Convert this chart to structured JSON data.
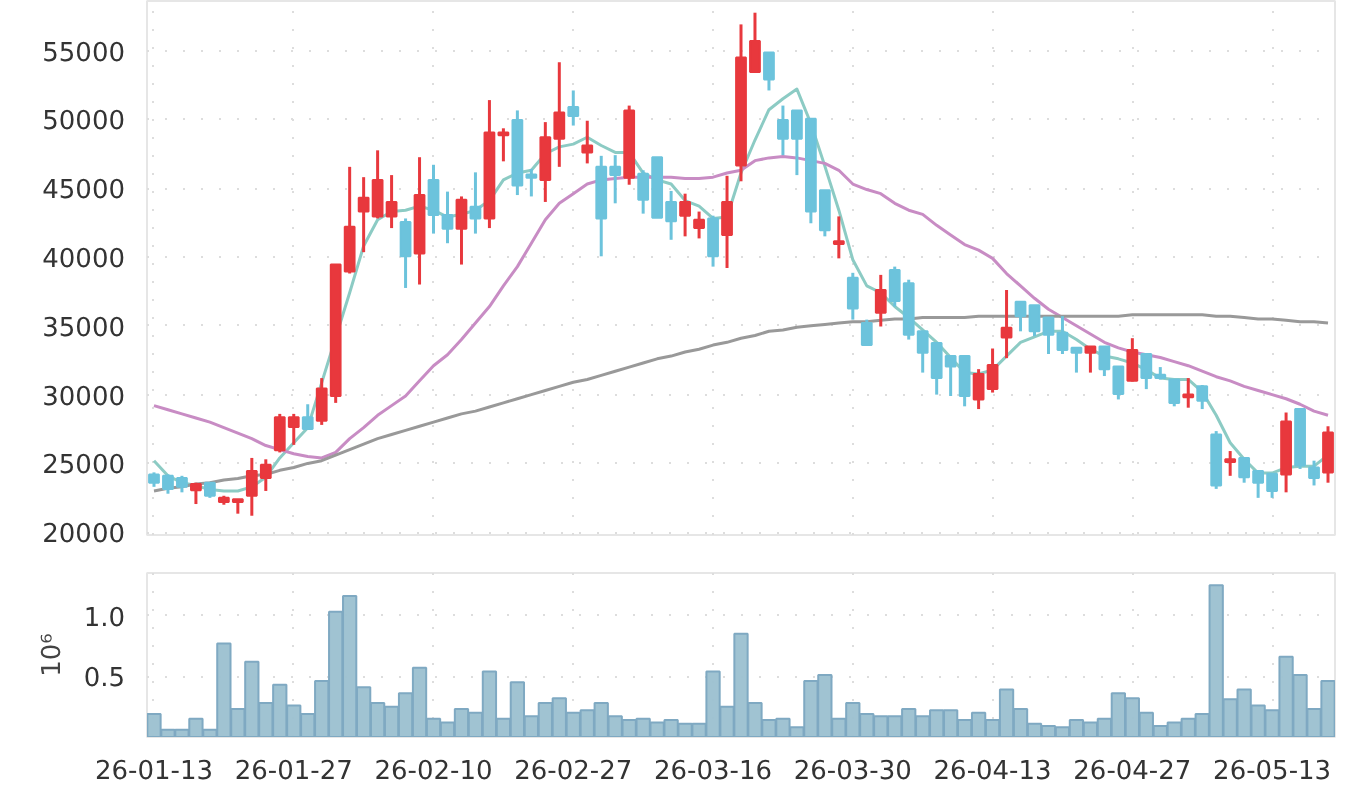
{
  "chart_data": [
    {
      "type": "candlestick",
      "categories": [
        null,
        null,
        null,
        null,
        null,
        null,
        null,
        null,
        null,
        null,
        null,
        null,
        null,
        null,
        null,
        null,
        null,
        null,
        null,
        null,
        null,
        null,
        null,
        null,
        null,
        null,
        null,
        null,
        null,
        null,
        null,
        null,
        null,
        null,
        null,
        null,
        null,
        null,
        null,
        null,
        null,
        null,
        null,
        null,
        null,
        null,
        null,
        null,
        null,
        null,
        null,
        null,
        null,
        null,
        null,
        null,
        null,
        null,
        null,
        null,
        null,
        null,
        null,
        null,
        null,
        null,
        null,
        null,
        null,
        null,
        null,
        null,
        null,
        null,
        null,
        null,
        null,
        null,
        null,
        null,
        null,
        null,
        null,
        null,
        null
      ],
      "ohlc": [
        [
          24200,
          24350,
          23300,
          23600
        ],
        [
          24100,
          24200,
          22800,
          23150
        ],
        [
          23950,
          24100,
          22900,
          23300
        ],
        [
          23050,
          23600,
          22050,
          23500
        ],
        [
          23600,
          23600,
          22500,
          22650
        ],
        [
          22200,
          22650,
          22000,
          22500
        ],
        [
          22200,
          22400,
          21350,
          22400
        ],
        [
          22650,
          25400,
          21200,
          24450
        ],
        [
          23950,
          25300,
          23000,
          24900
        ],
        [
          25950,
          28600,
          25800,
          28350
        ],
        [
          27650,
          28600,
          26350,
          28350
        ],
        [
          28350,
          29300,
          27450,
          27500
        ],
        [
          28100,
          31200,
          27800,
          30450
        ],
        [
          29900,
          39450,
          29400,
          39450
        ],
        [
          38950,
          46550,
          38800,
          42200
        ],
        [
          43300,
          45800,
          40350,
          44300
        ],
        [
          42950,
          47750,
          42800,
          45600
        ],
        [
          42950,
          45950,
          42100,
          44000
        ],
        [
          42550,
          42800,
          37750,
          40050
        ],
        [
          40250,
          47250,
          38000,
          44500
        ],
        [
          45600,
          46700,
          41700,
          43050
        ],
        [
          43050,
          44750,
          41000,
          42050
        ],
        [
          42050,
          44400,
          39450,
          44150
        ],
        [
          43650,
          46150,
          41700,
          42800
        ],
        [
          42800,
          51400,
          42100,
          49050
        ],
        [
          48850,
          49350,
          46950,
          49050
        ],
        [
          49950,
          50650,
          44500,
          45200
        ],
        [
          46000,
          46400,
          44400,
          45750
        ],
        [
          45600,
          49800,
          44000,
          48700
        ],
        [
          48600,
          54150,
          46550,
          50500
        ],
        [
          50900,
          52100,
          49550,
          50250
        ],
        [
          47600,
          49900,
          46800,
          48100
        ],
        [
          46550,
          47350,
          40050,
          42800
        ],
        [
          46550,
          47400,
          43900,
          45950
        ],
        [
          45750,
          51000,
          45250,
          50650
        ],
        [
          46050,
          46300,
          43150,
          44150
        ],
        [
          47250,
          47250,
          42850,
          42850
        ],
        [
          44000,
          44800,
          41250,
          42600
        ],
        [
          43000,
          44600,
          41500,
          44000
        ],
        [
          42100,
          43300,
          41350,
          42700
        ],
        [
          42800,
          43000,
          39300,
          40050
        ],
        [
          41600,
          45900,
          39200,
          44000
        ],
        [
          46650,
          56900,
          45500,
          54500
        ],
        [
          53450,
          57750,
          53450,
          55700
        ],
        [
          54850,
          54850,
          52100,
          52900
        ],
        [
          49950,
          51000,
          47400,
          48600
        ],
        [
          50650,
          50650,
          45950,
          48600
        ],
        [
          50050,
          50050,
          42450,
          43300
        ],
        [
          44850,
          44850,
          41500,
          41950
        ],
        [
          40950,
          42950,
          39900,
          41150
        ],
        [
          38500,
          38850,
          35450,
          36250
        ],
        [
          35200,
          35450,
          33600,
          33600
        ],
        [
          35950,
          38700,
          34950,
          37600
        ],
        [
          39050,
          39300,
          36400,
          36800
        ],
        [
          38100,
          38350,
          34000,
          34350
        ],
        [
          34600,
          34600,
          31600,
          33050
        ],
        [
          33750,
          33750,
          30000,
          31200
        ],
        [
          32800,
          32800,
          29900,
          32050
        ],
        [
          32800,
          32800,
          29150,
          29900
        ],
        [
          29650,
          31850,
          28950,
          31500
        ],
        [
          30400,
          33350,
          30150,
          32150
        ],
        [
          34150,
          37600,
          32650,
          34850
        ],
        [
          36750,
          36750,
          34600,
          35700
        ],
        [
          36500,
          36500,
          34250,
          34600
        ],
        [
          35600,
          35600,
          32950,
          34350
        ],
        [
          34500,
          35700,
          32950,
          33250
        ],
        [
          33400,
          33400,
          31600,
          33050
        ],
        [
          33050,
          33500,
          31600,
          33500
        ],
        [
          33500,
          33500,
          31350,
          31850
        ],
        [
          32050,
          32050,
          29650,
          30050
        ],
        [
          31000,
          34100,
          30950,
          33250
        ],
        [
          32950,
          32950,
          30400,
          31200
        ],
        [
          31450,
          32000,
          31100,
          31200
        ],
        [
          31100,
          31100,
          29150,
          29400
        ],
        [
          29800,
          31200,
          29050,
          30000
        ],
        [
          30600,
          30700,
          28950,
          29550
        ],
        [
          27100,
          27350,
          23150,
          23400
        ],
        [
          25100,
          25900,
          24100,
          25300
        ],
        [
          25400,
          25400,
          23600,
          24000
        ],
        [
          24450,
          24450,
          22500,
          23600
        ],
        [
          24250,
          24250,
          22500,
          23000
        ],
        [
          24200,
          28700,
          22900,
          28050
        ],
        [
          28950,
          28950,
          24600,
          24850
        ],
        [
          24700,
          25200,
          23400,
          23950
        ],
        [
          24350,
          27700,
          23600,
          27250
        ]
      ],
      "colors": [
        "#6cc3dc",
        "#6cc3dc",
        "#6cc3dc",
        "#e8383d",
        "#6cc3dc",
        "#e8383d",
        "#e8383d",
        "#e8383d",
        "#e8383d",
        "#e8383d",
        "#e8383d",
        "#6cc3dc",
        "#e8383d",
        "#e8383d",
        "#e8383d",
        "#e8383d",
        "#e8383d",
        "#e8383d",
        "#6cc3dc",
        "#e8383d",
        "#6cc3dc",
        "#6cc3dc",
        "#e8383d",
        "#6cc3dc",
        "#e8383d",
        "#e8383d",
        "#6cc3dc",
        "#6cc3dc",
        "#e8383d",
        "#e8383d",
        "#6cc3dc",
        "#e8383d",
        "#6cc3dc",
        "#6cc3dc",
        "#e8383d",
        "#6cc3dc",
        "#6cc3dc",
        "#6cc3dc",
        "#e8383d",
        "#e8383d",
        "#6cc3dc",
        "#e8383d",
        "#e8383d",
        "#e8383d",
        "#6cc3dc",
        "#6cc3dc",
        "#6cc3dc",
        "#6cc3dc",
        "#6cc3dc",
        "#e8383d",
        "#6cc3dc",
        "#6cc3dc",
        "#e8383d",
        "#6cc3dc",
        "#6cc3dc",
        "#6cc3dc",
        "#6cc3dc",
        "#6cc3dc",
        "#6cc3dc",
        "#e8383d",
        "#e8383d",
        "#e8383d",
        "#6cc3dc",
        "#6cc3dc",
        "#6cc3dc",
        "#6cc3dc",
        "#6cc3dc",
        "#e8383d",
        "#6cc3dc",
        "#6cc3dc",
        "#e8383d",
        "#6cc3dc",
        "#6cc3dc",
        "#6cc3dc",
        "#e8383d",
        "#6cc3dc",
        "#6cc3dc",
        "#e8383d",
        "#6cc3dc",
        "#6cc3dc",
        "#6cc3dc",
        "#e8383d",
        "#6cc3dc",
        "#6cc3dc",
        "#e8383d"
      ],
      "series": [
        {
          "type": "line",
          "color": "#8ccbc4",
          "values": [
            25200,
            24100,
            23600,
            23400,
            23100,
            23000,
            23000,
            23300,
            24000,
            25400,
            26500,
            27600,
            null,
            null,
            37400,
            40800,
            42700,
            43300,
            43400,
            43700,
            43400,
            42900,
            43100,
            43400,
            44100,
            45600,
            46100,
            46300,
            47500,
            48000,
            48200,
            48700,
            48100,
            47600,
            47600,
            46100,
            45600,
            45300,
            44100,
            43700,
            42800,
            42900,
            46100,
            48500,
            50700,
            51500,
            52200,
            49700,
            46600,
            43400,
            39800,
            37900,
            37400,
            36400,
            35600,
            34700,
            33800,
            32700,
            31600,
            31500,
            31800,
            32800,
            33800,
            34200,
            34600,
            34600,
            34000,
            33300,
            32800,
            32600,
            32300,
            31800,
            31200,
            31100,
            31100,
            30200,
            28500,
            26500,
            25300,
            24300,
            24300,
            24700,
            24800,
            24800,
            25600
          ]
        },
        {
          "type": "line",
          "color": "#c88cc4",
          "values": [
            29200,
            28900,
            28600,
            28300,
            28000,
            27600,
            27200,
            26800,
            26300,
            26000,
            25700,
            25500,
            25400,
            25800,
            26800,
            27600,
            28500,
            29200,
            29900,
            31000,
            32100,
            32900,
            34000,
            35200,
            36400,
            37900,
            39300,
            41000,
            42700,
            43900,
            44600,
            45300,
            45600,
            45700,
            45800,
            45800,
            45800,
            45800,
            45700,
            45700,
            45800,
            46100,
            46300,
            47000,
            47200,
            47300,
            47200,
            47000,
            46800,
            46300,
            45300,
            44900,
            44600,
            43900,
            43400,
            43100,
            42300,
            41600,
            40900,
            40500,
            39900,
            38800,
            37900,
            37000,
            36200,
            35600,
            35000,
            34400,
            33800,
            33400,
            33100,
            32900,
            32700,
            32400,
            32100,
            31700,
            31300,
            31000,
            30600,
            30300,
            30000,
            29700,
            29300,
            28800,
            28500
          ]
        },
        {
          "type": "line",
          "color": "#999999",
          "values": [
            23000,
            23200,
            23300,
            23500,
            23600,
            23800,
            23900,
            24100,
            24200,
            24500,
            24700,
            25000,
            25200,
            25600,
            26000,
            26400,
            26800,
            27100,
            27400,
            27700,
            28000,
            28300,
            28600,
            28800,
            29100,
            29400,
            29700,
            30000,
            30300,
            30600,
            30900,
            31100,
            31400,
            31700,
            32000,
            32300,
            32600,
            32800,
            33100,
            33300,
            33600,
            33800,
            34100,
            34300,
            34600,
            34700,
            34900,
            35000,
            35100,
            35200,
            35300,
            35300,
            35400,
            35500,
            35500,
            35600,
            35600,
            35600,
            35600,
            35700,
            35700,
            35700,
            35700,
            35700,
            35700,
            35700,
            35700,
            35700,
            35700,
            35700,
            35800,
            35800,
            35800,
            35800,
            35800,
            35800,
            35700,
            35700,
            35600,
            35500,
            35500,
            35400,
            35300,
            35300,
            35200
          ]
        }
      ],
      "ylim": [
        19800,
        58600
      ],
      "yticks": [
        20000,
        25000,
        30000,
        35000,
        40000,
        45000,
        50000,
        55000
      ],
      "grid": true,
      "tick_labels": "y"
    },
    {
      "type": "bar",
      "categories": [
        "26-01-13",
        null,
        null,
        null,
        null,
        null,
        null,
        null,
        null,
        null,
        "26-01-27",
        null,
        null,
        null,
        null,
        null,
        null,
        null,
        null,
        null,
        "26-02-10",
        null,
        null,
        null,
        null,
        null,
        null,
        null,
        null,
        null,
        "26-02-27",
        null,
        null,
        null,
        null,
        null,
        null,
        null,
        null,
        null,
        "26-03-16",
        null,
        null,
        null,
        null,
        null,
        null,
        null,
        null,
        null,
        "26-03-30",
        null,
        null,
        null,
        null,
        null,
        null,
        null,
        null,
        null,
        "26-04-13",
        null,
        null,
        null,
        null,
        null,
        null,
        null,
        null,
        null,
        "26-04-27",
        null,
        null,
        null,
        null,
        null,
        null,
        null,
        null,
        null,
        "26-05-13",
        null,
        null,
        null,
        null
      ],
      "values": [
        0.19,
        0.06,
        0.06,
        0.15,
        0.06,
        0.77,
        0.23,
        0.62,
        0.28,
        0.43,
        0.26,
        0.19,
        0.46,
        1.03,
        1.16,
        0.41,
        0.28,
        0.25,
        0.36,
        0.57,
        0.15,
        0.12,
        0.23,
        0.2,
        0.54,
        0.15,
        0.45,
        0.17,
        0.28,
        0.32,
        0.2,
        0.22,
        0.28,
        0.17,
        0.14,
        0.15,
        0.12,
        0.14,
        0.11,
        0.11,
        0.54,
        0.25,
        0.85,
        0.28,
        0.14,
        0.15,
        0.08,
        0.46,
        0.51,
        0.15,
        0.28,
        0.19,
        0.17,
        0.17,
        0.23,
        0.17,
        0.22,
        0.22,
        0.14,
        0.2,
        0.14,
        0.39,
        0.23,
        0.11,
        0.09,
        0.08,
        0.14,
        0.12,
        0.15,
        0.36,
        0.32,
        0.2,
        0.09,
        0.12,
        0.15,
        0.19,
        1.25,
        0.31,
        0.39,
        0.26,
        0.22,
        0.66,
        0.51,
        0.23,
        0.46
      ],
      "color": "#9bc0d0",
      "ylim": [
        0,
        1.35
      ],
      "yticks": [
        {
          "value": 0.5,
          "label": "0.5"
        },
        {
          "value": 1.0,
          "label": "1.0"
        }
      ],
      "ylabel": "10⁶",
      "grid": true
    }
  ]
}
